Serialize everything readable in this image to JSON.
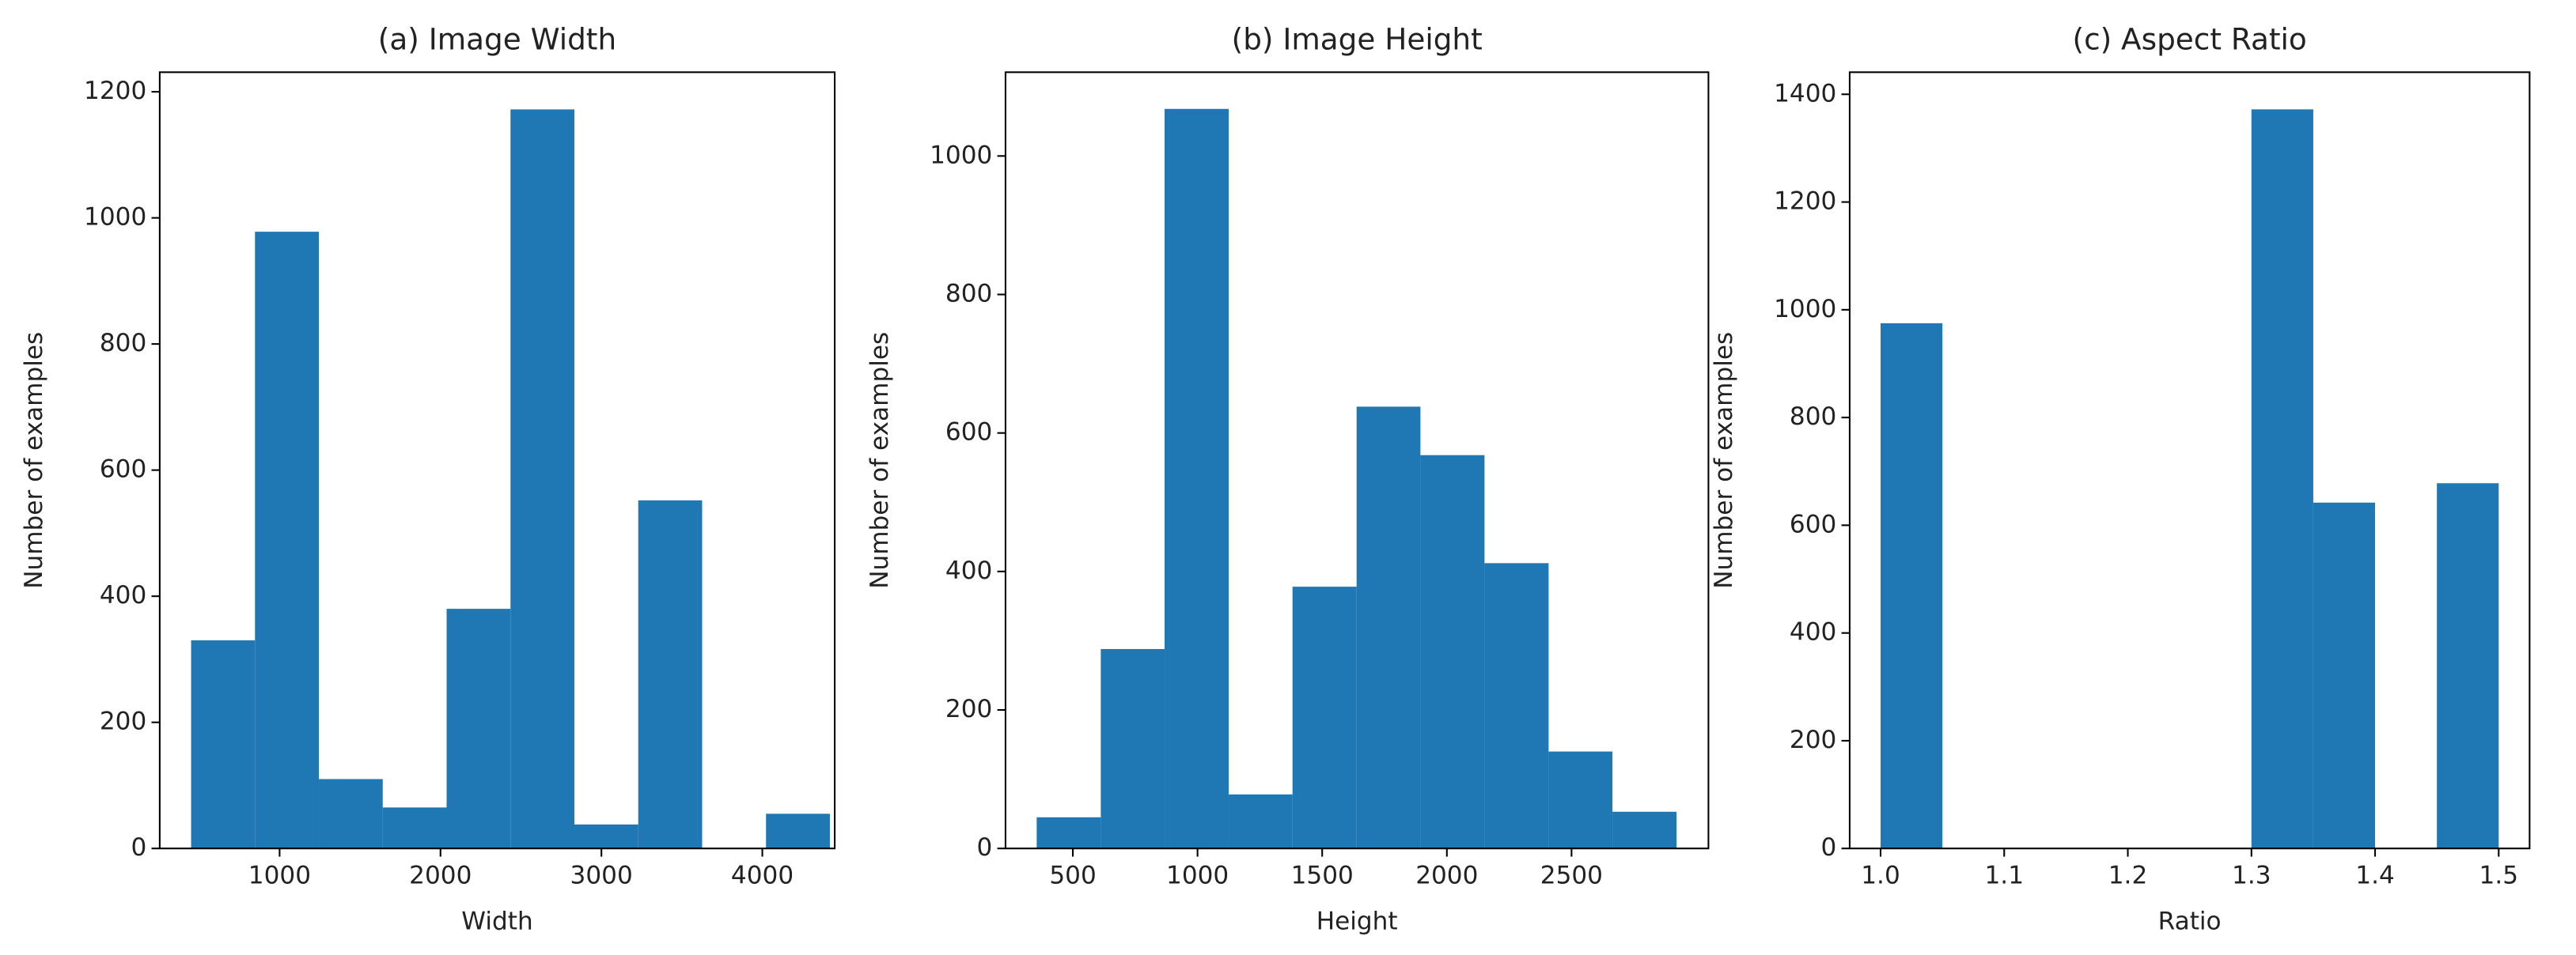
{
  "chart_data": [
    {
      "type": "histogram",
      "title": "(a) Image Width",
      "xlabel": "Width",
      "ylabel": "Number of examples",
      "bins": [
        450,
        847,
        1244,
        1641,
        2038,
        2435,
        2832,
        3229,
        3626,
        4023,
        4420
      ],
      "values": [
        330,
        978,
        110,
        65,
        380,
        1172,
        38,
        552,
        0,
        55
      ],
      "color": "#1f77b4",
      "xlim": [
        255,
        4450
      ],
      "ylim": [
        0,
        1231
      ],
      "xticks": [
        1000,
        2000,
        3000,
        4000
      ],
      "yticks": [
        0,
        200,
        400,
        600,
        800,
        1000,
        1200
      ]
    },
    {
      "type": "histogram",
      "title": "(b) Image Height",
      "xlabel": "Height",
      "ylabel": "Number of examples",
      "bins": [
        355,
        612,
        868,
        1125,
        1381,
        1638,
        1894,
        2151,
        2408,
        2664,
        2921
      ],
      "values": [
        45,
        288,
        1068,
        78,
        378,
        638,
        568,
        412,
        140,
        53
      ],
      "color": "#1f77b4",
      "xlim": [
        230,
        3049
      ],
      "ylim": [
        0,
        1121
      ],
      "xticks": [
        500,
        1000,
        1500,
        2000,
        2500
      ],
      "yticks": [
        0,
        200,
        400,
        600,
        800,
        1000
      ]
    },
    {
      "type": "histogram",
      "title": "(c) Aspect Ratio",
      "xlabel": "Ratio",
      "ylabel": "Number of examples",
      "bins": [
        1.0,
        1.05,
        1.1,
        1.15,
        1.2,
        1.25,
        1.3,
        1.35,
        1.4,
        1.45,
        1.5
      ],
      "values": [
        975,
        0,
        0,
        0,
        0,
        0,
        1372,
        642,
        0,
        678
      ],
      "color": "#1f77b4",
      "xlim": [
        0.975,
        1.525
      ],
      "ylim": [
        0,
        1441
      ],
      "xticks": [
        {
          "value": 1,
          "label": "1.0"
        },
        1.1,
        1.2,
        1.3,
        1.4,
        1.5
      ],
      "yticks": [
        0,
        200,
        400,
        600,
        800,
        1000,
        1200,
        1400
      ]
    }
  ]
}
